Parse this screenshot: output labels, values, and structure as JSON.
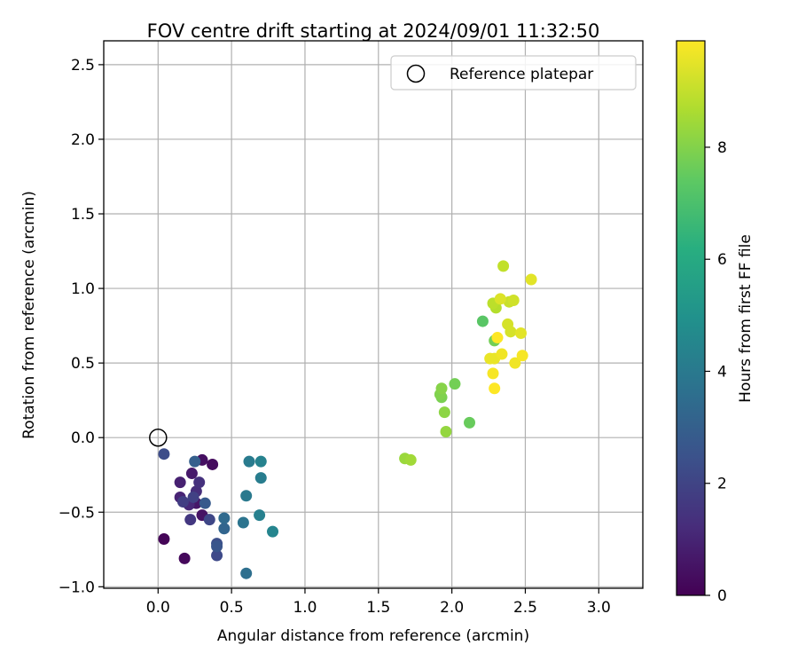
{
  "chart_data": {
    "type": "scatter",
    "title": "FOV centre drift starting at 2024/09/01 11:32:50",
    "xlabel": "Angular distance from reference (arcmin)",
    "ylabel": "Rotation from reference (arcmin)",
    "xlim": [
      -0.37,
      3.3
    ],
    "ylim": [
      -1.01,
      2.66
    ],
    "xticks": [
      "0.0",
      "0.5",
      "1.0",
      "1.5",
      "2.0",
      "2.5",
      "3.0"
    ],
    "xtick_values": [
      0.0,
      0.5,
      1.0,
      1.5,
      2.0,
      2.5,
      3.0
    ],
    "yticks": [
      "−1.0",
      "−0.5",
      "0.0",
      "0.5",
      "1.0",
      "1.5",
      "2.0",
      "2.5"
    ],
    "ytick_values": [
      -1.0,
      -0.5,
      0.0,
      0.5,
      1.0,
      1.5,
      2.0,
      2.5
    ],
    "grid": true,
    "legend": {
      "placement": "top-right",
      "entries": [
        {
          "label": "Reference platepar",
          "marker": "open-circle"
        }
      ]
    },
    "reference_point": {
      "x": 0.0,
      "y": 0.0
    },
    "colorbar": {
      "label": "Hours from first FF file",
      "colormap": "viridis",
      "range": [
        0,
        9.9
      ],
      "ticks": [
        "0",
        "2",
        "4",
        "6",
        "8"
      ],
      "tick_values": [
        0,
        2,
        4,
        6,
        8
      ]
    },
    "points": [
      {
        "x": 0.04,
        "y": -0.68,
        "hours": 0.1
      },
      {
        "x": 0.18,
        "y": -0.81,
        "hours": 0.2
      },
      {
        "x": 0.37,
        "y": -0.18,
        "hours": 0.3
      },
      {
        "x": 0.3,
        "y": -0.15,
        "hours": 0.4
      },
      {
        "x": 0.3,
        "y": -0.52,
        "hours": 0.5
      },
      {
        "x": 0.26,
        "y": -0.44,
        "hours": 0.6
      },
      {
        "x": 0.23,
        "y": -0.24,
        "hours": 0.7
      },
      {
        "x": 0.15,
        "y": -0.3,
        "hours": 0.9
      },
      {
        "x": 0.15,
        "y": -0.4,
        "hours": 1.0
      },
      {
        "x": 0.21,
        "y": -0.45,
        "hours": 1.1
      },
      {
        "x": 0.26,
        "y": -0.36,
        "hours": 1.3
      },
      {
        "x": 0.28,
        "y": -0.3,
        "hours": 1.4
      },
      {
        "x": 0.22,
        "y": -0.55,
        "hours": 1.6
      },
      {
        "x": 0.17,
        "y": -0.43,
        "hours": 1.8
      },
      {
        "x": 0.24,
        "y": -0.4,
        "hours": 1.9
      },
      {
        "x": 0.35,
        "y": -0.55,
        "hours": 2.1
      },
      {
        "x": 0.4,
        "y": -0.79,
        "hours": 2.2
      },
      {
        "x": 0.04,
        "y": -0.11,
        "hours": 2.3
      },
      {
        "x": 0.4,
        "y": -0.71,
        "hours": 2.4
      },
      {
        "x": 0.4,
        "y": -0.73,
        "hours": 2.6
      },
      {
        "x": 0.32,
        "y": -0.44,
        "hours": 2.8
      },
      {
        "x": 0.25,
        "y": -0.16,
        "hours": 3.0
      },
      {
        "x": 0.45,
        "y": -0.61,
        "hours": 3.2
      },
      {
        "x": 0.45,
        "y": -0.54,
        "hours": 3.4
      },
      {
        "x": 0.6,
        "y": -0.91,
        "hours": 3.6
      },
      {
        "x": 0.58,
        "y": -0.57,
        "hours": 3.8
      },
      {
        "x": 0.6,
        "y": -0.39,
        "hours": 4.0
      },
      {
        "x": 0.62,
        "y": -0.16,
        "hours": 4.1
      },
      {
        "x": 0.7,
        "y": -0.27,
        "hours": 4.2
      },
      {
        "x": 0.69,
        "y": -0.52,
        "hours": 4.3
      },
      {
        "x": 0.7,
        "y": -0.16,
        "hours": 4.4
      },
      {
        "x": 0.78,
        "y": -0.63,
        "hours": 4.5
      },
      {
        "x": 2.21,
        "y": 0.78,
        "hours": 7.3
      },
      {
        "x": 2.12,
        "y": 0.1,
        "hours": 7.6
      },
      {
        "x": 2.02,
        "y": 0.36,
        "hours": 7.8
      },
      {
        "x": 1.93,
        "y": 0.27,
        "hours": 7.9
      },
      {
        "x": 1.92,
        "y": 0.29,
        "hours": 8.0
      },
      {
        "x": 1.93,
        "y": 0.33,
        "hours": 8.1
      },
      {
        "x": 1.95,
        "y": 0.17,
        "hours": 8.2
      },
      {
        "x": 1.96,
        "y": 0.04,
        "hours": 8.3
      },
      {
        "x": 1.68,
        "y": -0.14,
        "hours": 8.4
      },
      {
        "x": 1.72,
        "y": -0.15,
        "hours": 8.5
      },
      {
        "x": 2.29,
        "y": 0.65,
        "hours": 7.8
      },
      {
        "x": 2.3,
        "y": 0.87,
        "hours": 8.8
      },
      {
        "x": 2.28,
        "y": 0.9,
        "hours": 8.9
      },
      {
        "x": 2.35,
        "y": 1.15,
        "hours": 9.0
      },
      {
        "x": 2.39,
        "y": 0.91,
        "hours": 9.1
      },
      {
        "x": 2.42,
        "y": 0.92,
        "hours": 9.2
      },
      {
        "x": 2.38,
        "y": 0.76,
        "hours": 9.3
      },
      {
        "x": 2.4,
        "y": 0.71,
        "hours": 9.3
      },
      {
        "x": 2.33,
        "y": 0.93,
        "hours": 9.4
      },
      {
        "x": 2.47,
        "y": 0.7,
        "hours": 9.5
      },
      {
        "x": 2.54,
        "y": 1.06,
        "hours": 9.5
      },
      {
        "x": 2.29,
        "y": 0.53,
        "hours": 9.6
      },
      {
        "x": 2.26,
        "y": 0.53,
        "hours": 9.6
      },
      {
        "x": 2.34,
        "y": 0.56,
        "hours": 9.7
      },
      {
        "x": 2.43,
        "y": 0.5,
        "hours": 9.7
      },
      {
        "x": 2.48,
        "y": 0.55,
        "hours": 9.8
      },
      {
        "x": 2.28,
        "y": 0.43,
        "hours": 9.8
      },
      {
        "x": 2.29,
        "y": 0.33,
        "hours": 9.9
      },
      {
        "x": 2.31,
        "y": 0.67,
        "hours": 9.9
      }
    ]
  }
}
